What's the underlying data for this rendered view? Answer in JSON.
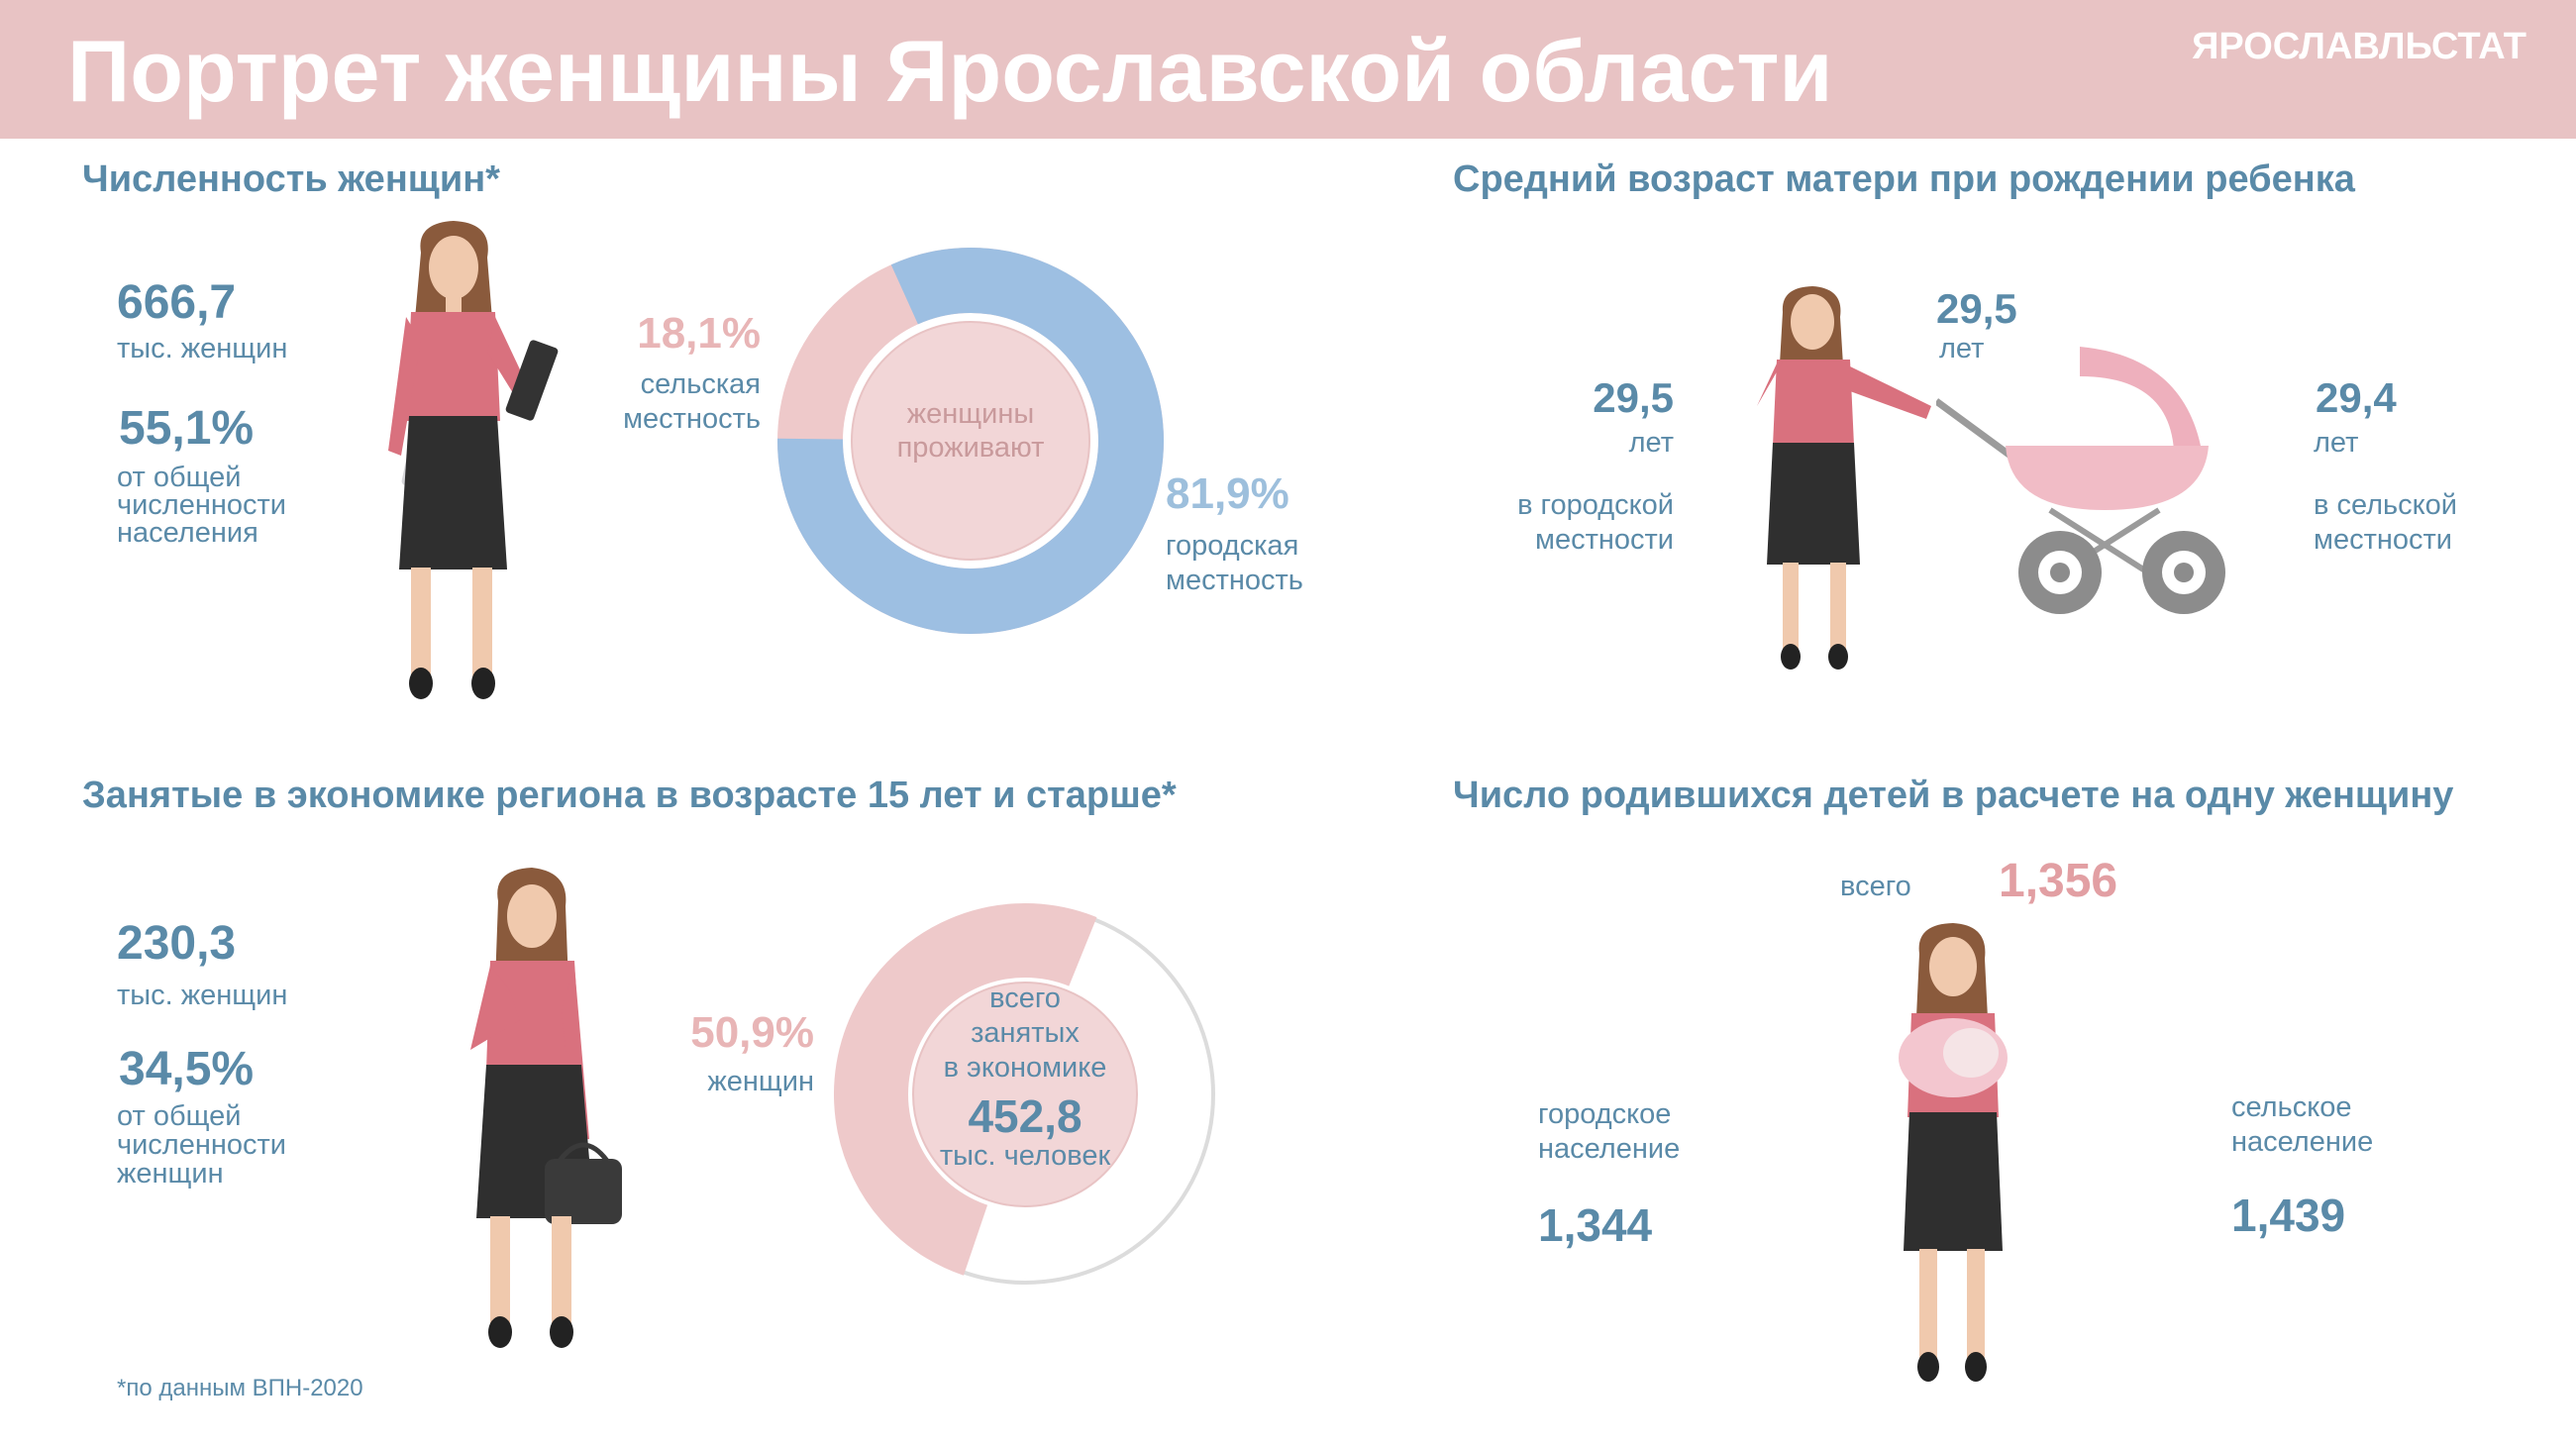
{
  "header": {
    "title": "Портрет женщины Ярославской области",
    "org": "ЯРОСЛАВЛЬСТАТ"
  },
  "women_count": {
    "title": "Численность женщин*",
    "value": "666,7",
    "value_unit": "тыс. женщин",
    "share": "55,1%",
    "share_label_1": "от общей",
    "share_label_2": "численности",
    "share_label_3": "населения",
    "donut_center_1": "женщины",
    "donut_center_2": "проживают",
    "rural_pct": "18,1%",
    "rural_label_1": "сельская",
    "rural_label_2": "местность",
    "urban_pct": "81,9%",
    "urban_label_1": "городская",
    "urban_label_2": "местность"
  },
  "mother_age": {
    "title": "Средний возраст матери при рождении ребенка",
    "total": "29,5",
    "total_unit": "лет",
    "urban": "29,5",
    "urban_unit": "лет",
    "urban_label_1": "в городской",
    "urban_label_2": "местности",
    "rural": "29,4",
    "rural_unit": "лет",
    "rural_label_1": "в сельской",
    "rural_label_2": "местности"
  },
  "employment": {
    "title": "Занятые в экономике региона в возрасте 15 лет и старше*",
    "value": "230,3",
    "value_unit": "тыс. женщин",
    "share": "34,5%",
    "share_label_1": "от общей",
    "share_label_2": "численности",
    "share_label_3": "женщин",
    "women_pct": "50,9%",
    "women_label": "женщин",
    "center_1": "всего",
    "center_2": "занятых",
    "center_3": "в экономике",
    "center_value": "452,8",
    "center_unit": "тыс. человек"
  },
  "fertility": {
    "title": "Число родившихся детей в расчете на одну женщину",
    "total_label": "всего",
    "total": "1,356",
    "urban_label_1": "городское",
    "urban_label_2": "население",
    "urban": "1,344",
    "rural_label_1": "сельское",
    "rural_label_2": "население",
    "rural": "1,439"
  },
  "shares": {
    "rural_fraction": 0.181,
    "urban_fraction": 0.819,
    "women_employed_fraction": 0.509
  },
  "colors": {
    "header_bg": "#e8c3c4",
    "blue_text": "#5a8aa8",
    "blue_ring": "#9dbfe2",
    "pink_ring": "#eec9ca",
    "pink_text": "#e8b5b6",
    "skirt": "#2f2f2f",
    "blouse": "#d9717e"
  },
  "footnote": "*по данным ВПН-2020"
}
